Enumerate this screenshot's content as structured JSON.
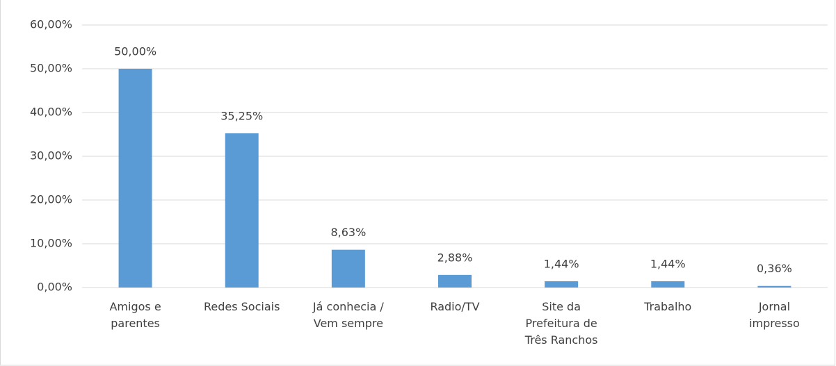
{
  "chart_data": {
    "type": "bar",
    "categories": [
      "Amigos e\nparentes",
      "Redes Sociais",
      "Já conhecia /\nVem sempre",
      "Radio/TV",
      "Site da\nPrefeitura de\nTrês Ranchos",
      "Trabalho",
      "Jornal\nimpresso"
    ],
    "values": [
      50,
      35.25,
      8.63,
      2.88,
      1.44,
      1.44,
      0.36
    ],
    "value_labels": [
      "50,00%",
      "35,25%",
      "8,63%",
      "2,88%",
      "1,44%",
      "1,44%",
      "0,36%"
    ],
    "color": "#5b9bd5",
    "ylim": [
      0,
      60
    ],
    "yticks": [
      {
        "value": 0,
        "label": "0,00%"
      },
      {
        "value": 10,
        "label": "10,00%"
      },
      {
        "value": 20,
        "label": "20,00%"
      },
      {
        "value": 30,
        "label": "30,00%"
      },
      {
        "value": 40,
        "label": "40,00%"
      },
      {
        "value": 50,
        "label": "50,00%"
      },
      {
        "value": 60,
        "label": "60,00%"
      }
    ],
    "grid": true
  }
}
